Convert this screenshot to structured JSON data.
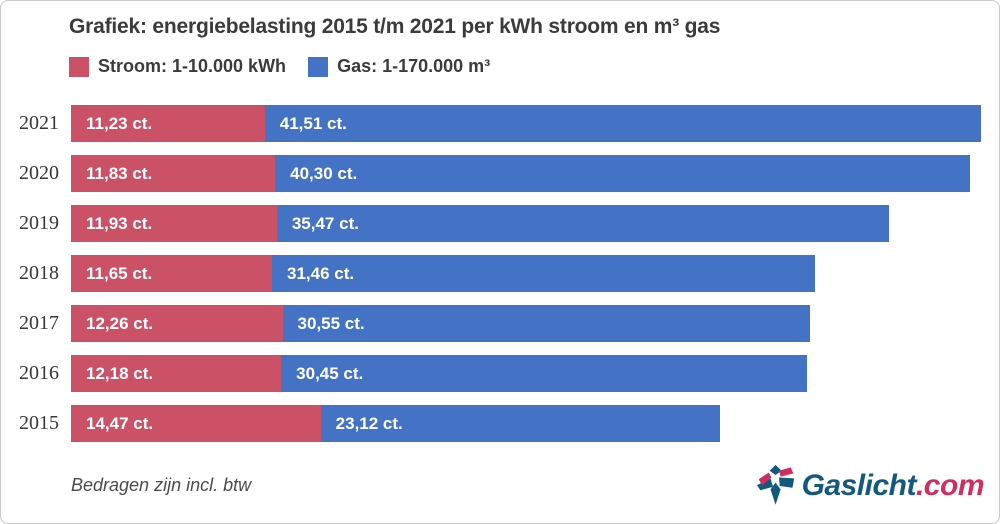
{
  "title": "Grafiek: energiebelasting 2015 t/m 2021 per kWh stroom en m³ gas",
  "note": "Bedragen zijn incl. btw",
  "legend": [
    {
      "label": "Stroom: 1-10.000 kWh",
      "color": "#cb5166"
    },
    {
      "label": "Gas: 1-170.000 m³",
      "color": "#4473c5"
    }
  ],
  "logo": {
    "name": "Gaslicht",
    "tld": ".com",
    "name_color": "#13597d",
    "tld_color": "#d02e5e"
  },
  "chart_data": {
    "type": "bar",
    "orientation": "horizontal",
    "stacked": true,
    "title": "Grafiek: energiebelasting 2015 t/m 2021 per kWh stroom en m³ gas",
    "note": "Bedragen zijn incl. btw",
    "unit": "ct.",
    "categories": [
      "2021",
      "2020",
      "2019",
      "2018",
      "2017",
      "2016",
      "2015"
    ],
    "series": [
      {
        "name": "Stroom: 1-10.000 kWh",
        "color": "#cb5166",
        "values": [
          11.23,
          11.83,
          11.93,
          11.65,
          12.26,
          12.18,
          14.47
        ],
        "labels": [
          "11,23 ct.",
          "11,83 ct.",
          "11,93 ct.",
          "11,65 ct.",
          "12,26 ct.",
          "12,18 ct.",
          "14,47 ct."
        ]
      },
      {
        "name": "Gas: 1-170.000 m³",
        "color": "#4473c5",
        "values": [
          41.51,
          40.3,
          35.47,
          31.46,
          30.55,
          30.45,
          23.12
        ],
        "labels": [
          "41,51 ct.",
          "40,30 ct.",
          "35,47 ct.",
          "31,46 ct.",
          "30,55 ct.",
          "30,45 ct.",
          "23,12 ct."
        ]
      }
    ],
    "xlim": [
      0,
      52.74
    ],
    "value_label_color": "#ffffff",
    "legend_position": "top",
    "grid": false
  }
}
